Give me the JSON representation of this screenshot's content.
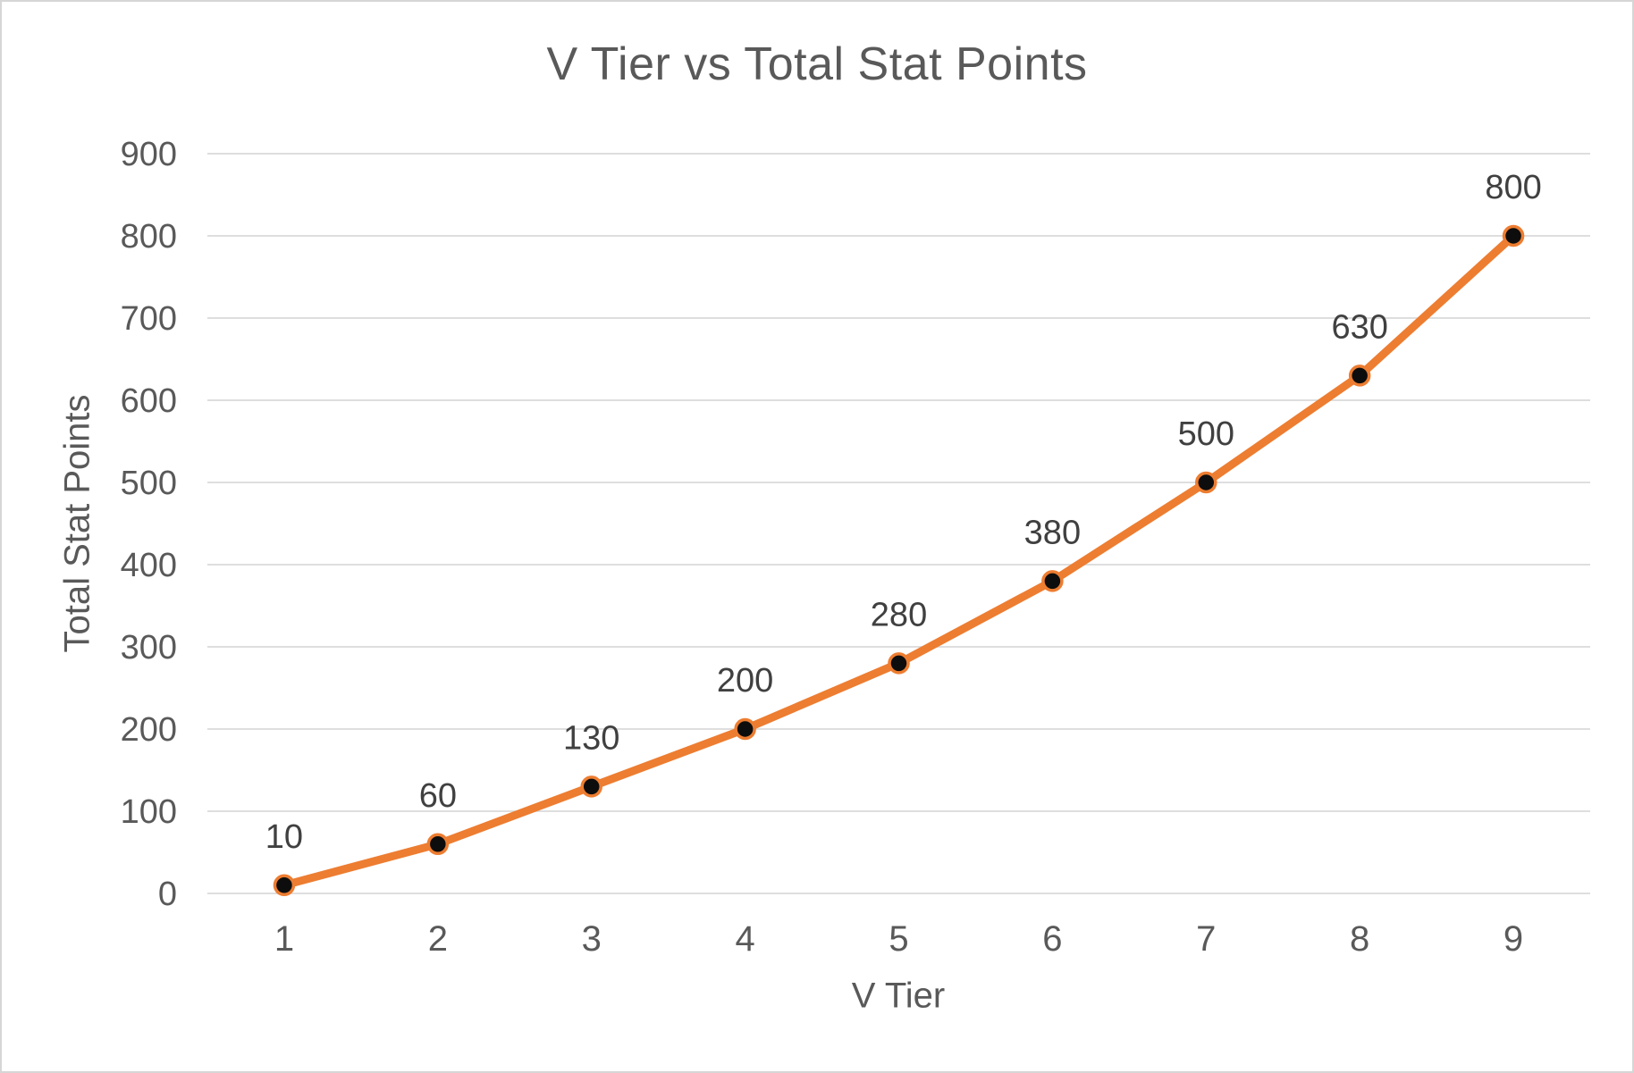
{
  "chart_data": {
    "type": "line",
    "title": "V Tier vs Total Stat Points",
    "xlabel": "V Tier",
    "ylabel": "Total Stat Points",
    "categories": [
      "1",
      "2",
      "3",
      "4",
      "5",
      "6",
      "7",
      "8",
      "9"
    ],
    "series": [
      {
        "name": "Total Stat Points",
        "values": [
          10,
          60,
          130,
          200,
          280,
          380,
          500,
          630,
          800
        ]
      }
    ],
    "data_labels": [
      "10",
      "60",
      "130",
      "200",
      "280",
      "380",
      "500",
      "630",
      "800"
    ],
    "ylim": [
      0,
      900
    ],
    "ytick_step": 100,
    "yticks": [
      0,
      100,
      200,
      300,
      400,
      500,
      600,
      700,
      800,
      900
    ],
    "grid": "horizontal",
    "legend": "none",
    "colors": {
      "line": "#ED7D31",
      "marker_fill": "#0D0D0D",
      "marker_stroke": "#ED7D31",
      "gridline": "#D9D9D9",
      "axis_text": "#595959",
      "title_text": "#595959",
      "data_label_text": "#404040",
      "background": "#FFFFFF",
      "frame_border": "#D6D6D6"
    }
  }
}
